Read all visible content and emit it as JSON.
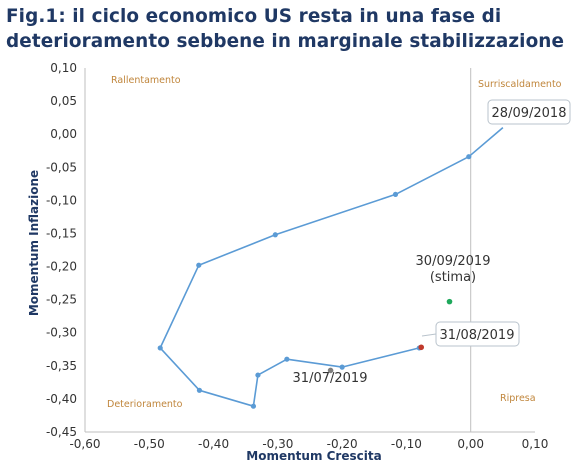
{
  "title_line1": "Fig.1: il ciclo economico US resta in una fase di",
  "title_line2": "deterioramento sebbene in marginale stabilizzazione",
  "chart_data": {
    "type": "scatter",
    "title": "Fig.1: il ciclo economico US resta in una fase di deterioramento sebbene in marginale stabilizzazione",
    "xlabel": "Momentum Crescita",
    "ylabel": "Momentum Inflazione",
    "xlim": [
      -0.6,
      0.1
    ],
    "ylim": [
      -0.45,
      0.1
    ],
    "x_ticks": [
      "-0,60",
      "-0,50",
      "-0,40",
      "-0,30",
      "-0,20",
      "-0,10",
      "0,00",
      "0,10"
    ],
    "y_ticks": [
      "0,10",
      "0,05",
      "0,00",
      "-0,05",
      "-0,10",
      "-0,15",
      "-0,20",
      "-0,25",
      "-0,30",
      "-0,35",
      "-0,40",
      "-0,45"
    ],
    "quadrants": {
      "top_left": "Rallentamento",
      "top_right": "Surriscaldamento",
      "bottom_left": "Deterioramento",
      "bottom_right": "Ripresa"
    },
    "series": [
      {
        "type": "line",
        "color": "#5b9bd5",
        "points": [
          {
            "x": 0.05,
            "y": 0.01
          },
          {
            "x": -0.003,
            "y": -0.034
          },
          {
            "x": -0.117,
            "y": -0.091
          },
          {
            "x": -0.304,
            "y": -0.152
          },
          {
            "x": -0.423,
            "y": -0.198
          },
          {
            "x": -0.483,
            "y": -0.323
          },
          {
            "x": -0.422,
            "y": -0.387
          },
          {
            "x": -0.338,
            "y": -0.411
          },
          {
            "x": -0.331,
            "y": -0.364
          },
          {
            "x": -0.286,
            "y": -0.34
          },
          {
            "x": -0.2,
            "y": -0.352
          },
          {
            "x": -0.08,
            "y": -0.323
          }
        ]
      },
      {
        "type": "point",
        "color": "#7f7f7f",
        "x": -0.218,
        "y": -0.357
      },
      {
        "type": "point",
        "color": "#c0392b",
        "x": -0.077,
        "y": -0.322
      },
      {
        "type": "point",
        "color": "#1ea85b",
        "x": -0.033,
        "y": -0.253
      }
    ],
    "annotations": {
      "sep2018": "28/09/2018",
      "aug2019": "31/08/2019",
      "jul2019": "31/07/2019",
      "sep2019_line1": "30/09/2019",
      "sep2019_line2": "(stima)"
    }
  }
}
